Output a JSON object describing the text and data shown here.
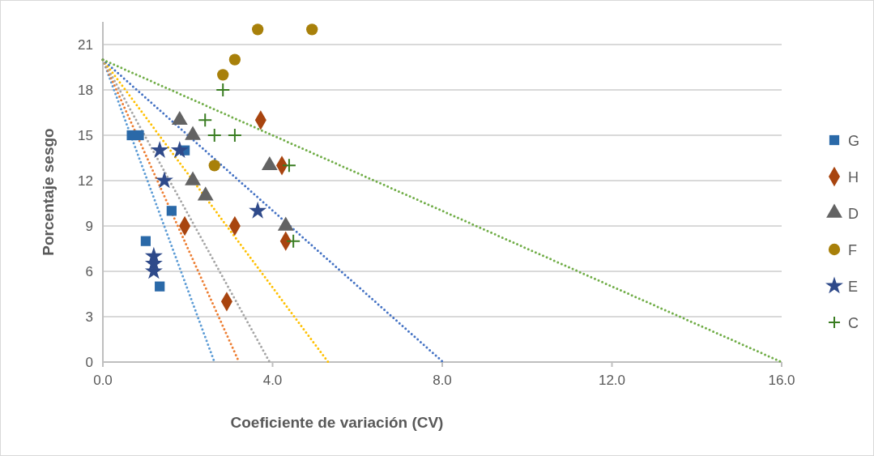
{
  "chart_data": {
    "type": "scatter",
    "xlabel": "Coeficiente de variación (CV)",
    "ylabel": "Porcentaje sesgo",
    "xlim": [
      0,
      16
    ],
    "ylim": [
      0,
      22.5
    ],
    "xticks": [
      {
        "value": 0,
        "label": "0.0"
      },
      {
        "value": 4,
        "label": "4.0"
      },
      {
        "value": 8,
        "label": "8.0"
      },
      {
        "value": 12,
        "label": "12.0"
      },
      {
        "value": 16,
        "label": "16.0"
      }
    ],
    "yticks": [
      0,
      3,
      6,
      9,
      12,
      15,
      18,
      21
    ],
    "grid": "y",
    "legend": "right",
    "series": [
      {
        "type": "line",
        "color": "#5b9bd5",
        "x": [
          0,
          2.63
        ],
        "values": [
          20,
          0
        ],
        "line_style": "dotted",
        "marker": "none"
      },
      {
        "type": "line",
        "color": "#ed7d31",
        "x": [
          0,
          3.21
        ],
        "values": [
          20,
          0
        ],
        "line_style": "dotted",
        "marker": "none"
      },
      {
        "type": "line",
        "color": "#a5a5a5",
        "x": [
          0,
          3.93
        ],
        "values": [
          20,
          0
        ],
        "line_style": "dotted",
        "marker": "none"
      },
      {
        "type": "line",
        "color": "#ffc000",
        "x": [
          0,
          5.31
        ],
        "values": [
          20,
          0
        ],
        "line_style": "dotted",
        "marker": "none"
      },
      {
        "type": "line",
        "color": "#4472c4",
        "x": [
          0,
          8.02
        ],
        "values": [
          20,
          0
        ],
        "line_style": "dotted",
        "marker": "none"
      },
      {
        "type": "line",
        "color": "#70ad47",
        "x": [
          0,
          16
        ],
        "values": [
          20,
          0
        ],
        "line_style": "dotted",
        "marker": "none"
      },
      {
        "name": "G",
        "color": "#2a69a8",
        "marker": "square",
        "x": [
          0.68,
          0.85,
          1.93,
          1.62,
          1.01,
          1.34
        ],
        "values": [
          15,
          15,
          14,
          10,
          8,
          5
        ]
      },
      {
        "name": "H",
        "color": "#a8440f",
        "marker": "diamond",
        "x": [
          3.72,
          4.22,
          1.93,
          3.11,
          4.31,
          2.92
        ],
        "values": [
          16,
          13,
          9,
          9,
          8,
          4
        ]
      },
      {
        "name": "D",
        "color": "#636363",
        "marker": "triangle",
        "x": [
          1.81,
          2.12,
          2.12,
          2.42,
          3.93,
          4.31
        ],
        "values": [
          16,
          15,
          12,
          11,
          13,
          9
        ]
      },
      {
        "name": "F",
        "color": "#a8800a",
        "marker": "circle",
        "x": [
          3.65,
          4.93,
          3.11,
          2.83,
          2.63
        ],
        "values": [
          22,
          22,
          20,
          19,
          13
        ]
      },
      {
        "name": "E",
        "color": "#2f4a8a",
        "marker": "star",
        "x": [
          1.34,
          1.81,
          1.45,
          1.2,
          1.2,
          1.2,
          3.65
        ],
        "values": [
          14,
          14,
          12,
          7,
          6.5,
          6,
          10
        ]
      },
      {
        "name": "C",
        "color": "#3a7d22",
        "marker": "cross",
        "x": [
          2.83,
          2.41,
          2.63,
          3.11,
          4.39,
          4.49
        ],
        "values": [
          18,
          16,
          15,
          15,
          13,
          8
        ]
      }
    ]
  }
}
